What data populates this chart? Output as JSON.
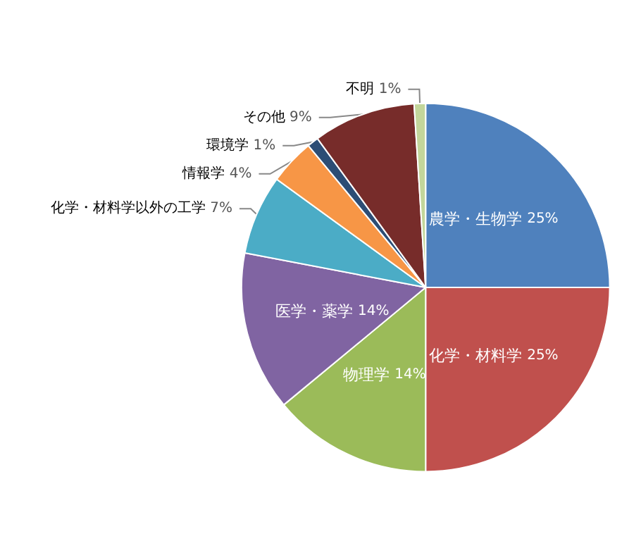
{
  "chart_data": {
    "type": "pie",
    "categories": [
      "農学・生物学",
      "化学・材料学",
      "物理学",
      "医学・薬学",
      "化学・材料学以外の工学",
      "情報学",
      "環境学",
      "その他",
      "不明"
    ],
    "values": [
      25,
      25,
      14,
      14,
      7,
      4,
      1,
      9,
      1
    ],
    "value_labels": [
      "25%",
      "25%",
      "14%",
      "14%",
      "7%",
      "4%",
      "1%",
      "9%",
      "1%"
    ],
    "colors": [
      "#4f81bd",
      "#c0504d",
      "#9bbb59",
      "#8064a2",
      "#4bacc6",
      "#f79646",
      "#2c4d75",
      "#772c2a",
      "#c3d69b"
    ],
    "legend": false
  }
}
